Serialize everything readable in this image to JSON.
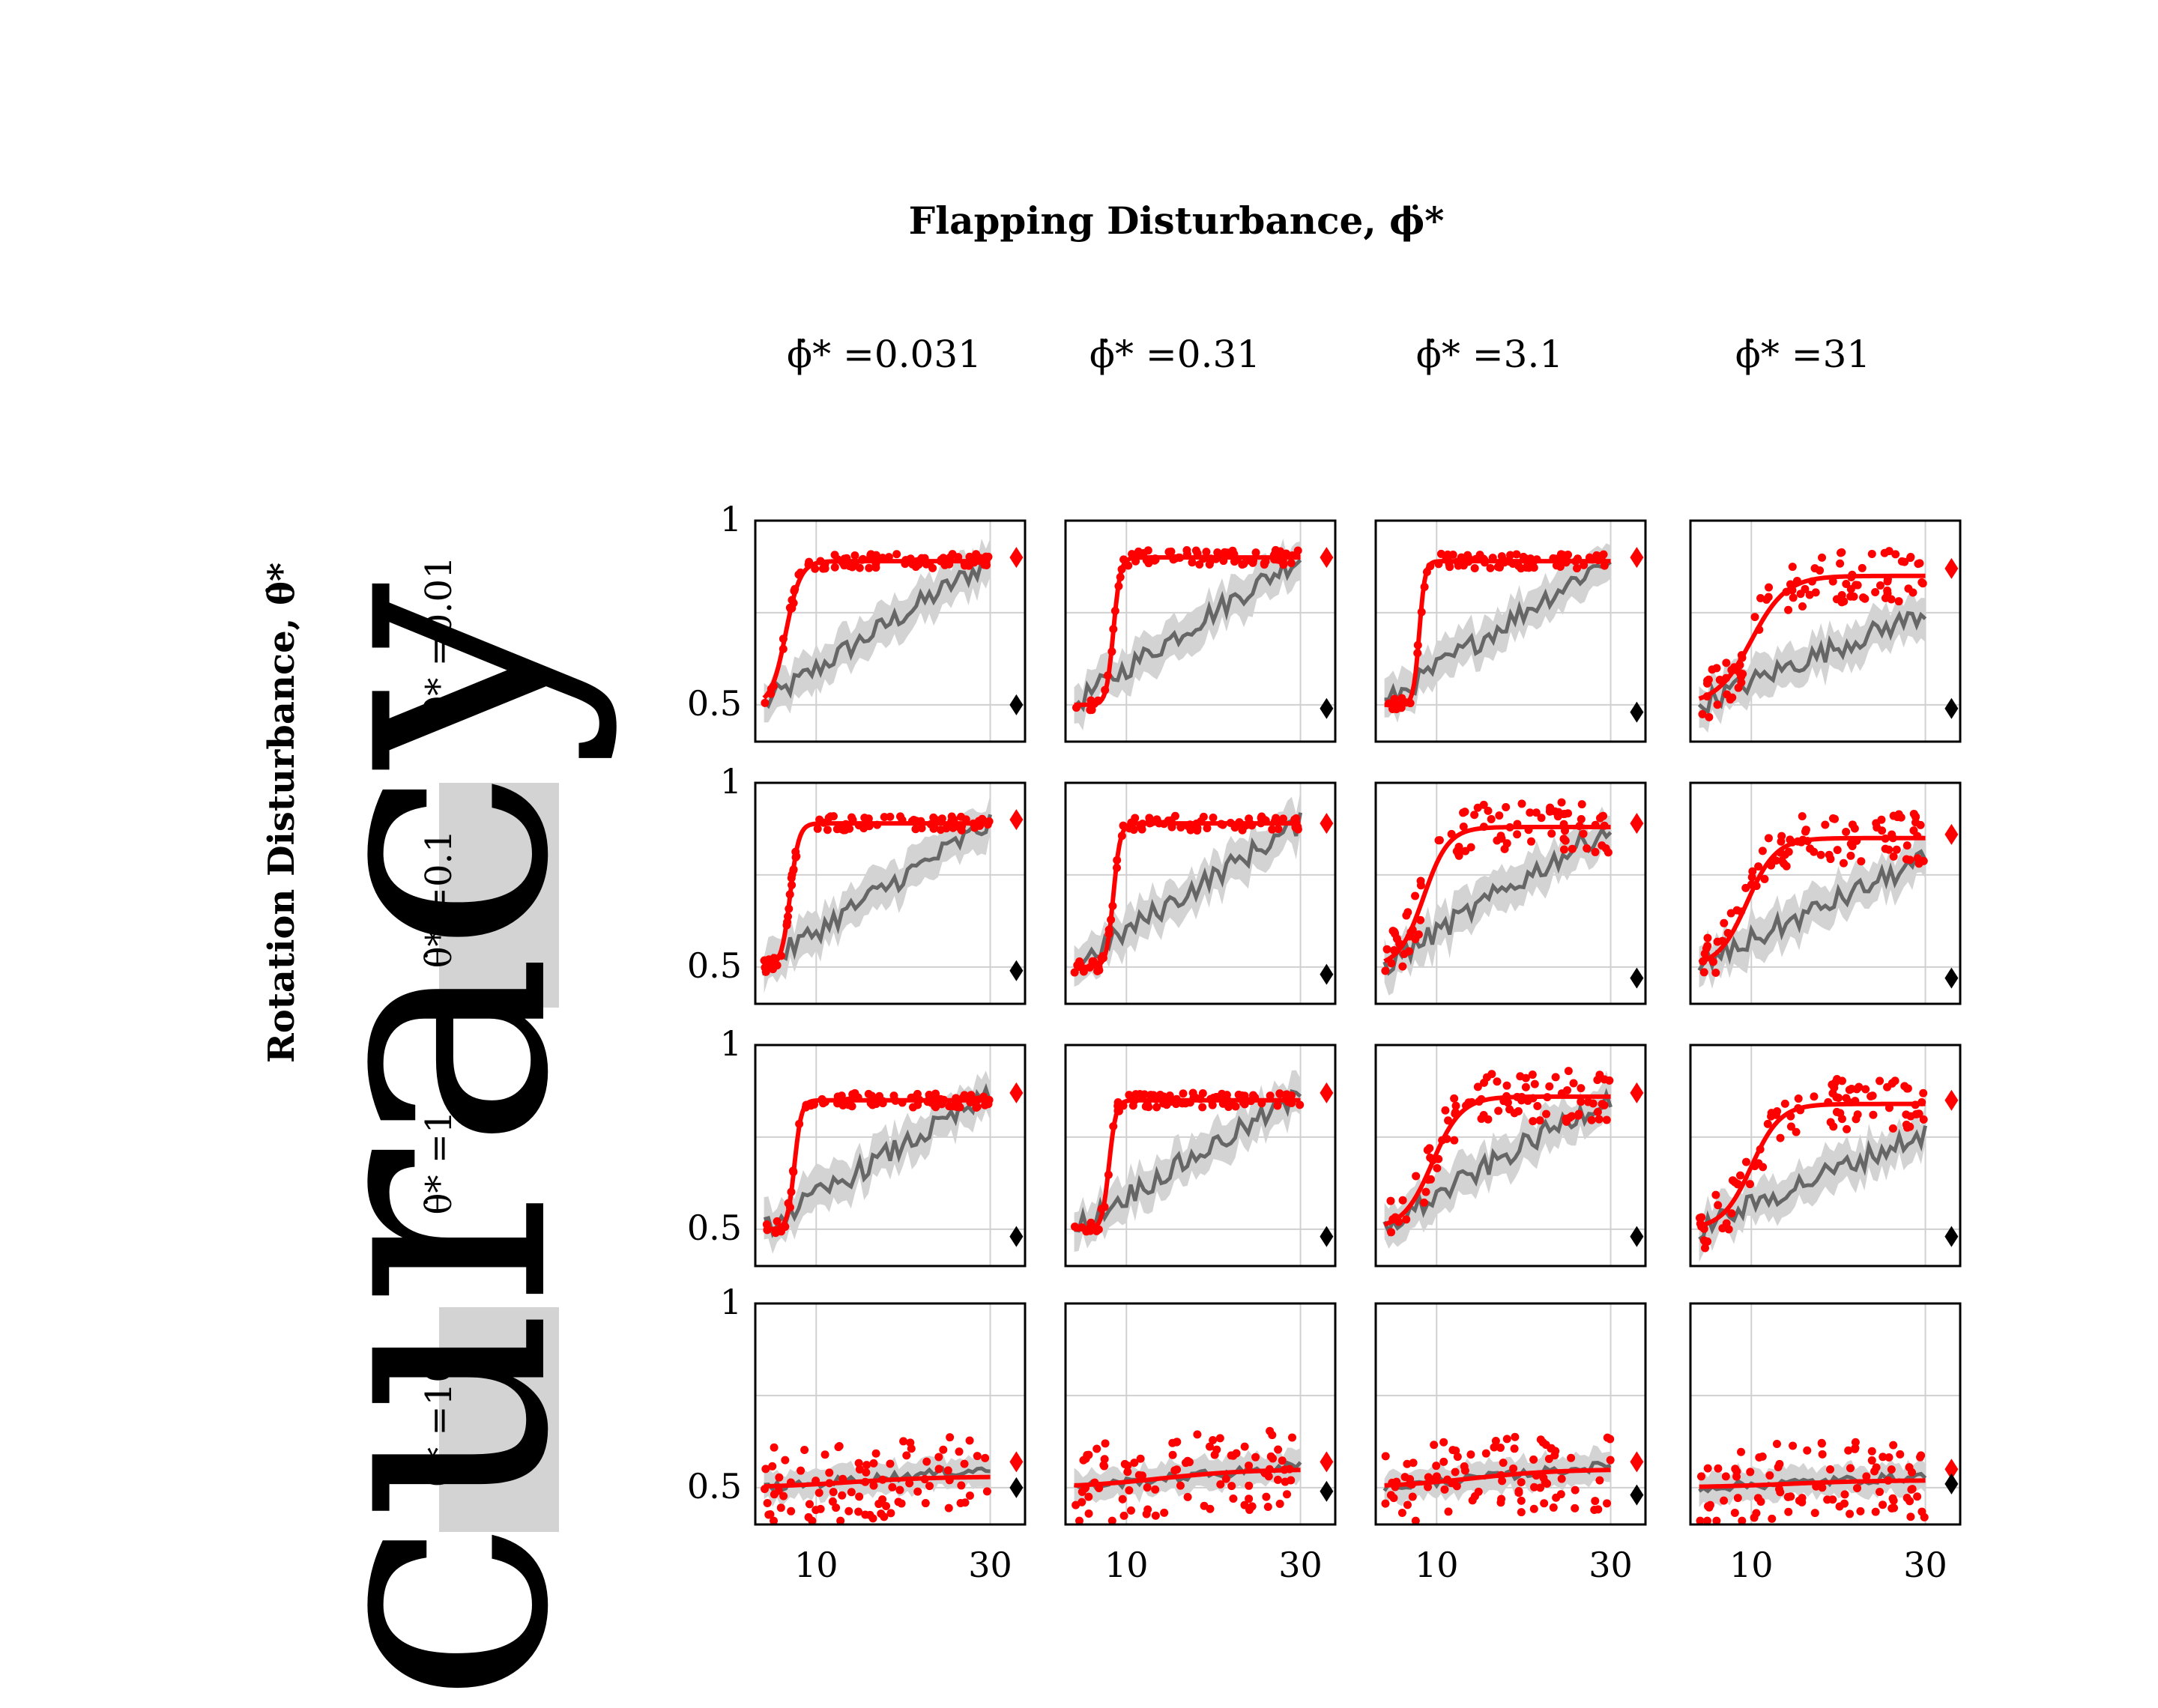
{
  "titles": {
    "flap_label": "Flapping Disturbance, ϕ̇*",
    "rot_label": "Rotation Disturbance, θ̇*",
    "side_word": "curacy"
  },
  "columns": [
    "ϕ̇* =0.031",
    "ϕ̇* =0.31",
    "ϕ̇* =3.1",
    "ϕ̇* =31"
  ],
  "rows": [
    "θ̇* =0.01",
    "θ̇* =0.1",
    "θ̇* =1",
    "θ̇* =10"
  ],
  "colors": {
    "model": "#ff0000",
    "human": "#666666",
    "band": "#d3d3d3",
    "human_marker": "#000000",
    "grid": "#d0d0d0"
  },
  "chart_data": {
    "type": "line",
    "layout": "4x4 small multiples",
    "x_ticks": [
      10,
      30
    ],
    "y_ticks": [
      0.5,
      1
    ],
    "ylim": [
      0.4,
      1.0
    ],
    "grid": true,
    "series_styles": {
      "red": "fitted sigmoid line + red dots, red diamond at right = asymptote",
      "gray": "gray line with light-gray band, black diamond at right"
    },
    "panels": [
      {
        "row": 0,
        "col": 0,
        "red_start": 0.5,
        "red_plateau": 0.89,
        "midpoint": 6.5,
        "steep": 1.2,
        "gray_end": 0.89,
        "red_diamond": 0.9,
        "black_diamond": 0.5
      },
      {
        "row": 0,
        "col": 1,
        "red_start": 0.5,
        "red_plateau": 0.9,
        "midpoint": 8.5,
        "steep": 2.5,
        "gray_end": 0.9,
        "red_diamond": 0.9,
        "black_diamond": 0.49
      },
      {
        "row": 0,
        "col": 2,
        "red_start": 0.5,
        "red_plateau": 0.89,
        "midpoint": 8.0,
        "steep": 3.0,
        "gray_end": 0.9,
        "red_diamond": 0.9,
        "black_diamond": 0.48
      },
      {
        "row": 0,
        "col": 3,
        "red_start": 0.5,
        "red_plateau": 0.85,
        "midpoint": 10.0,
        "steep": 0.5,
        "gray_end": 0.75,
        "red_diamond": 0.87,
        "black_diamond": 0.49
      },
      {
        "row": 1,
        "col": 0,
        "red_start": 0.5,
        "red_plateau": 0.89,
        "midpoint": 7.0,
        "steep": 2.0,
        "gray_end": 0.89,
        "red_diamond": 0.9,
        "black_diamond": 0.49
      },
      {
        "row": 1,
        "col": 1,
        "red_start": 0.5,
        "red_plateau": 0.89,
        "midpoint": 8.5,
        "steep": 2.5,
        "gray_end": 0.89,
        "red_diamond": 0.89,
        "black_diamond": 0.48
      },
      {
        "row": 1,
        "col": 2,
        "red_start": 0.5,
        "red_plateau": 0.88,
        "midpoint": 8.5,
        "steep": 0.7,
        "gray_end": 0.88,
        "red_diamond": 0.89,
        "black_diamond": 0.47
      },
      {
        "row": 1,
        "col": 3,
        "red_start": 0.5,
        "red_plateau": 0.85,
        "midpoint": 9.5,
        "steep": 0.6,
        "gray_end": 0.79,
        "red_diamond": 0.86,
        "black_diamond": 0.47
      },
      {
        "row": 2,
        "col": 0,
        "red_start": 0.5,
        "red_plateau": 0.85,
        "midpoint": 7.5,
        "steep": 2.5,
        "gray_end": 0.86,
        "red_diamond": 0.87,
        "black_diamond": 0.48
      },
      {
        "row": 2,
        "col": 1,
        "red_start": 0.5,
        "red_plateau": 0.85,
        "midpoint": 8.0,
        "steep": 2.5,
        "gray_end": 0.86,
        "red_diamond": 0.87,
        "black_diamond": 0.48
      },
      {
        "row": 2,
        "col": 2,
        "red_start": 0.5,
        "red_plateau": 0.86,
        "midpoint": 9.5,
        "steep": 0.6,
        "gray_end": 0.86,
        "red_diamond": 0.87,
        "black_diamond": 0.48
      },
      {
        "row": 2,
        "col": 3,
        "red_start": 0.5,
        "red_plateau": 0.84,
        "midpoint": 10.0,
        "steep": 0.6,
        "gray_end": 0.76,
        "red_diamond": 0.85,
        "black_diamond": 0.48
      },
      {
        "row": 3,
        "col": 0,
        "red_start": 0.5,
        "red_plateau": 0.53,
        "midpoint": 14.0,
        "steep": 0.2,
        "gray_end": 0.55,
        "red_diamond": 0.57,
        "black_diamond": 0.5
      },
      {
        "row": 3,
        "col": 1,
        "red_start": 0.5,
        "red_plateau": 0.55,
        "midpoint": 14.0,
        "steep": 0.2,
        "gray_end": 0.56,
        "red_diamond": 0.57,
        "black_diamond": 0.49
      },
      {
        "row": 3,
        "col": 2,
        "red_start": 0.5,
        "red_plateau": 0.55,
        "midpoint": 14.0,
        "steep": 0.2,
        "gray_end": 0.56,
        "red_diamond": 0.57,
        "black_diamond": 0.48
      },
      {
        "row": 3,
        "col": 3,
        "red_start": 0.5,
        "red_plateau": 0.52,
        "midpoint": 14.0,
        "steep": 0.2,
        "gray_end": 0.53,
        "red_diamond": 0.55,
        "black_diamond": 0.51
      }
    ]
  }
}
